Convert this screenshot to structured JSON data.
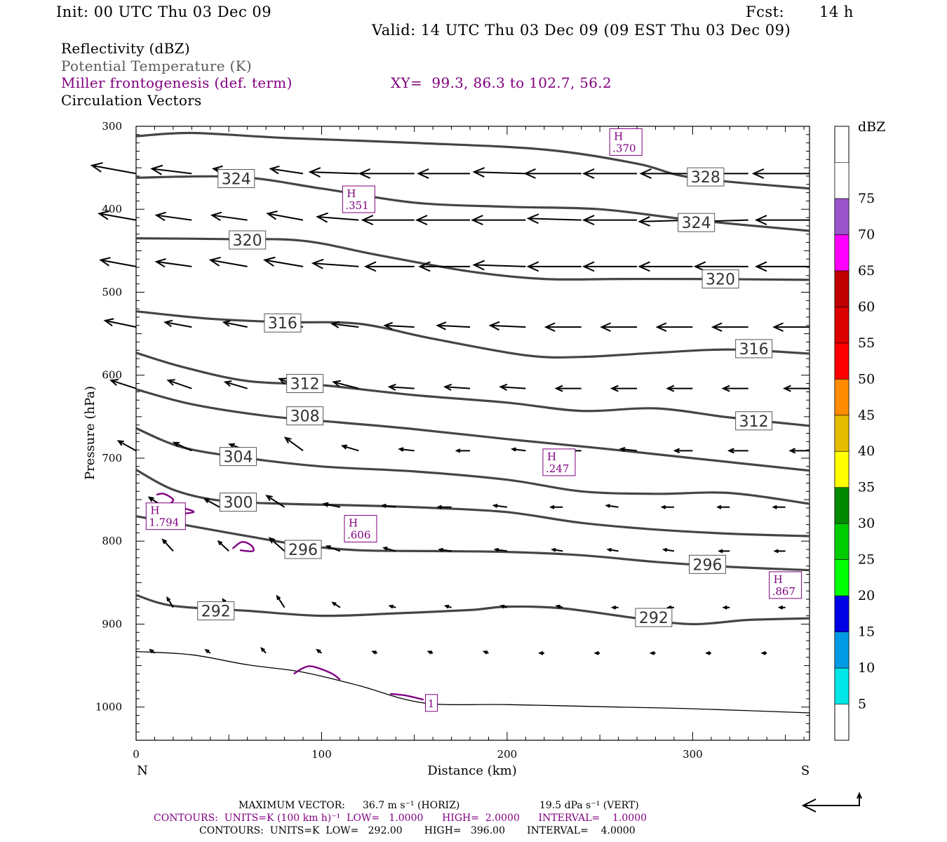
{
  "header": {
    "init": "Init: 00 UTC Thu 03 Dec 09",
    "fcst_label": "Fcst:",
    "fcst_value": "14 h",
    "valid": "Valid: 14 UTC Thu 03 Dec 09 (09 EST Thu 03 Dec 09)"
  },
  "legend": {
    "reflectivity": "Reflectivity (dBZ)",
    "potential_temperature": "Potential Temperature (K)",
    "miller": "Miller frontogenesis (def. term)",
    "xy": "XY=  99.3, 86.3 to 102.7, 56.2",
    "circulation": "Circulation Vectors"
  },
  "footer": {
    "max_vector_label": "MAXIMUM VECTOR:",
    "max_vector_horiz": "36.7 m s⁻¹ (HORIZ)",
    "max_vector_vert": "19.5 dPa s⁻¹ (VERT)",
    "contours_purple": "CONTOURS:  UNITS=K (100 km h)⁻¹  LOW=   1.0000      HIGH=  2.0000      INTERVAL=    1.0000",
    "contours_black": "CONTOURS:  UNITS=K  LOW=   292.00       HIGH=   396.00       INTERVAL=    4.0000"
  },
  "colors": {
    "theta": "#454545",
    "frontogenesis": "#800080",
    "vector": "#000000"
  },
  "colorbar": {
    "title": "dBZ",
    "labels": [
      "5",
      "10",
      "15",
      "20",
      "25",
      "30",
      "35",
      "40",
      "45",
      "50",
      "55",
      "60",
      "65",
      "70",
      "75"
    ],
    "colors": [
      "#00e5e5",
      "#0099e5",
      "#0000e5",
      "#00ff00",
      "#00cc00",
      "#008800",
      "#ffff00",
      "#e5bb00",
      "#ff8c00",
      "#ff0000",
      "#dd0000",
      "#c00000",
      "#ff00ff",
      "#9b55cc",
      "#ffffff"
    ]
  },
  "chart_data": {
    "type": "line",
    "xlabel": "Distance (km)",
    "ylabel": "Pressure (hPa)",
    "xlim": [
      0,
      363
    ],
    "ylim": [
      1040,
      300
    ],
    "y_scale": "linear (inverted)",
    "x_ticks": [
      "0",
      "100",
      "200",
      "300"
    ],
    "y_ticks": [
      "300",
      "400",
      "500",
      "600",
      "700",
      "800",
      "900",
      "1000"
    ],
    "x_end_labels": {
      "left": "N",
      "right": "S"
    },
    "theta_isentropes": [
      {
        "label": "292",
        "points": [
          [
            0,
            865
          ],
          [
            20,
            878
          ],
          [
            60,
            884
          ],
          [
            100,
            890
          ],
          [
            140,
            887
          ],
          [
            180,
            883
          ],
          [
            200,
            879
          ],
          [
            230,
            881
          ],
          [
            270,
            893
          ],
          [
            300,
            900
          ],
          [
            330,
            895
          ],
          [
            363,
            893
          ]
        ],
        "label_at": [
          [
            43,
            884
          ],
          [
            279,
            892
          ]
        ]
      },
      {
        "label": "296",
        "points": [
          [
            0,
            770
          ],
          [
            30,
            782
          ],
          [
            60,
            794
          ],
          [
            90,
            805
          ],
          [
            120,
            811
          ],
          [
            160,
            812
          ],
          [
            200,
            813
          ],
          [
            240,
            817
          ],
          [
            280,
            825
          ],
          [
            320,
            831
          ],
          [
            363,
            835
          ]
        ],
        "label_at": [
          [
            90,
            810
          ],
          [
            308,
            828
          ]
        ]
      },
      {
        "label": "300",
        "points": [
          [
            0,
            714
          ],
          [
            20,
            738
          ],
          [
            45,
            751
          ],
          [
            80,
            755
          ],
          [
            120,
            757
          ],
          [
            160,
            760
          ],
          [
            200,
            765
          ],
          [
            240,
            778
          ],
          [
            280,
            786
          ],
          [
            320,
            791
          ],
          [
            363,
            794
          ]
        ],
        "label_at": [
          [
            55,
            753
          ]
        ]
      },
      {
        "label": "304",
        "points": [
          [
            0,
            664
          ],
          [
            25,
            687
          ],
          [
            60,
            700
          ],
          [
            100,
            710
          ],
          [
            150,
            716
          ],
          [
            200,
            726
          ],
          [
            240,
            740
          ],
          [
            280,
            743
          ],
          [
            320,
            742
          ],
          [
            363,
            755
          ]
        ],
        "label_at": [
          [
            55,
            698
          ]
        ]
      },
      {
        "label": "308",
        "points": [
          [
            0,
            617
          ],
          [
            30,
            635
          ],
          [
            70,
            649
          ],
          [
            110,
            657
          ],
          [
            150,
            665
          ],
          [
            200,
            677
          ],
          [
            250,
            688
          ],
          [
            300,
            700
          ],
          [
            363,
            715
          ]
        ],
        "label_at": [
          [
            91,
            649
          ]
        ]
      },
      {
        "label": "312",
        "points": [
          [
            0,
            573
          ],
          [
            25,
            590
          ],
          [
            60,
            607
          ],
          [
            100,
            612
          ],
          [
            150,
            624
          ],
          [
            200,
            633
          ],
          [
            240,
            643
          ],
          [
            280,
            640
          ],
          [
            320,
            651
          ],
          [
            363,
            661
          ]
        ],
        "label_at": [
          [
            91,
            610
          ],
          [
            333,
            655
          ]
        ]
      },
      {
        "label": "316",
        "points": [
          [
            0,
            523
          ],
          [
            40,
            532
          ],
          [
            80,
            536
          ],
          [
            120,
            538
          ],
          [
            160,
            556
          ],
          [
            210,
            576
          ],
          [
            240,
            578
          ],
          [
            280,
            573
          ],
          [
            320,
            569
          ],
          [
            363,
            574
          ]
        ],
        "label_at": [
          [
            79,
            537
          ],
          [
            333,
            568
          ]
        ]
      },
      {
        "label": "320",
        "points": [
          [
            0,
            435
          ],
          [
            50,
            436
          ],
          [
            90,
            438
          ],
          [
            130,
            455
          ],
          [
            180,
            475
          ],
          [
            220,
            484
          ],
          [
            260,
            484
          ],
          [
            300,
            484
          ],
          [
            363,
            485
          ]
        ],
        "label_at": [
          [
            60,
            437
          ],
          [
            315,
            484
          ]
        ]
      },
      {
        "label": "324",
        "points": [
          [
            0,
            362
          ],
          [
            55,
            361
          ],
          [
            100,
            375
          ],
          [
            150,
            392
          ],
          [
            200,
            397
          ],
          [
            250,
            400
          ],
          [
            300,
            413
          ],
          [
            363,
            426
          ]
        ],
        "label_at": [
          [
            54,
            363
          ],
          [
            302,
            416
          ]
        ]
      },
      {
        "label": "328",
        "points": [
          [
            0,
            312
          ],
          [
            30,
            308
          ],
          [
            80,
            314
          ],
          [
            150,
            320
          ],
          [
            220,
            328
          ],
          [
            270,
            345
          ],
          [
            300,
            362
          ],
          [
            363,
            375
          ]
        ],
        "label_at": [
          [
            307,
            361
          ]
        ]
      }
    ],
    "frontogenesis_maxima": [
      {
        "label": "H",
        "value": ".370",
        "x": 264,
        "y": 319
      },
      {
        "label": "H",
        "value": ".351",
        "x": 120,
        "y": 388
      },
      {
        "label": "H",
        "value": ".247",
        "x": 228,
        "y": 705
      },
      {
        "label": "H",
        "value": "1.794",
        "x": 16,
        "y": 770
      },
      {
        "label": "H",
        "value": ".606",
        "x": 121,
        "y": 785
      },
      {
        "label": "H",
        "value": ".867",
        "x": 350,
        "y": 853
      }
    ],
    "frontogenesis_contours": [
      {
        "label": "1",
        "points": [
          [
            85,
            960
          ],
          [
            90,
            953
          ],
          [
            95,
            951
          ],
          [
            105,
            959
          ],
          [
            110,
            967
          ]
        ]
      },
      {
        "label": "1",
        "points": [
          [
            137,
            984
          ],
          [
            145,
            986
          ],
          [
            155,
            991
          ]
        ]
      },
      {
        "label": "1",
        "points": [
          [
            11,
            744
          ],
          [
            15,
            743
          ],
          [
            20,
            750
          ],
          [
            18,
            757
          ],
          [
            25,
            760
          ],
          [
            31,
            765
          ],
          [
            20,
            768
          ]
        ]
      },
      {
        "label": "1",
        "points": [
          [
            52,
            809
          ],
          [
            57,
            801
          ],
          [
            62,
            805
          ],
          [
            63,
            812
          ],
          [
            56,
            811
          ]
        ]
      }
    ],
    "terrain_surface": [
      [
        0,
        933
      ],
      [
        30,
        937
      ],
      [
        60,
        949
      ],
      [
        90,
        958
      ],
      [
        120,
        974
      ],
      [
        155,
        995
      ],
      [
        200,
        997
      ],
      [
        260,
        1000
      ],
      [
        300,
        1002
      ],
      [
        363,
        1007
      ]
    ],
    "terrain_label": "1",
    "terrain_label_at": [
      159,
      995
    ],
    "circulation_vectors": {
      "rows": [
        {
          "y": 357,
          "x": [
            0,
            30,
            60,
            90,
            120,
            150,
            180,
            210,
            240,
            270,
            300,
            330,
            363
          ],
          "u": [
            -30,
            -27,
            -23,
            -22,
            -33,
            -37,
            -35,
            -35,
            -38,
            -36,
            -35,
            -34,
            -38
          ],
          "v": [
            -5,
            -3,
            -3,
            -3,
            -1,
            0,
            0,
            -1,
            0,
            0,
            0,
            0,
            0
          ]
        },
        {
          "y": 413,
          "x": [
            0,
            30,
            60,
            90,
            120,
            150,
            180,
            210,
            240,
            270,
            300,
            330,
            363
          ],
          "u": [
            -25,
            -24,
            -24,
            -24,
            -28,
            -35,
            -36,
            -36,
            -36,
            -36,
            -36,
            -36,
            -36
          ],
          "v": [
            -4,
            -3,
            -3,
            -4,
            -2,
            0,
            0,
            0,
            -1,
            0,
            1,
            1,
            0
          ]
        },
        {
          "y": 469,
          "x": [
            0,
            30,
            60,
            90,
            120,
            150,
            180,
            210,
            240,
            270,
            300,
            330,
            363
          ],
          "u": [
            -24,
            -24,
            -25,
            -26,
            -31,
            -33,
            -34,
            -35,
            -36,
            -36,
            -36,
            -36,
            -36
          ],
          "v": [
            -4,
            -3,
            -4,
            -4,
            -2,
            0,
            0,
            -1,
            0,
            0,
            0,
            0,
            0
          ]
        },
        {
          "y": 542,
          "x": [
            0,
            30,
            60,
            90,
            120,
            150,
            180,
            210,
            240,
            270,
            300,
            330,
            363
          ],
          "u": [
            -21,
            -18,
            -16,
            -17,
            -18,
            -20,
            -22,
            -24,
            -24,
            -24,
            -24,
            -24,
            -24
          ],
          "v": [
            -4,
            -3,
            -3,
            -5,
            -2,
            -1,
            -1,
            -1,
            0,
            0,
            0,
            0,
            0
          ]
        },
        {
          "y": 616,
          "x": [
            0,
            30,
            60,
            90,
            120,
            150,
            180,
            210,
            240,
            270,
            300,
            330,
            363
          ],
          "u": [
            -17,
            -16,
            -15,
            -16,
            -17,
            -17,
            -17,
            -17,
            -17,
            -17,
            -17,
            -17,
            -17
          ],
          "v": [
            -5,
            -5,
            -4,
            -6,
            -4,
            -1,
            -1,
            -1,
            0,
            0,
            0,
            0,
            0
          ]
        },
        {
          "y": 691,
          "x": [
            0,
            30,
            60,
            90,
            120,
            150,
            180,
            210,
            240,
            270,
            300,
            330,
            363
          ],
          "u": [
            -12,
            -12,
            -12,
            -12,
            -11,
            -10,
            -9,
            -9,
            -10,
            -11,
            -12,
            -13,
            -13
          ],
          "v": [
            -6,
            -5,
            -4,
            -8,
            -3,
            -1,
            0,
            -1,
            0,
            -1,
            0,
            0,
            0
          ]
        },
        {
          "y": 759,
          "x": [
            15,
            45,
            80,
            110,
            140,
            170,
            200,
            230,
            260,
            290,
            320,
            350
          ],
          "u": [
            -10,
            -10,
            -12,
            -11,
            -9,
            -9,
            -9,
            -8,
            -8,
            -8,
            -8,
            -8
          ],
          "v": [
            -6,
            -5,
            -7,
            -2,
            -1,
            0,
            -1,
            0,
            -1,
            0,
            0,
            0
          ]
        },
        {
          "y": 812,
          "x": [
            20,
            50,
            80,
            110,
            140,
            170,
            200,
            230,
            260,
            290,
            320,
            350
          ],
          "u": [
            -7,
            -7,
            -10,
            -9,
            -8,
            -8,
            -8,
            -7,
            -7,
            -7,
            -7,
            -7
          ],
          "v": [
            -7,
            -6,
            -8,
            -3,
            -2,
            -1,
            -1,
            -1,
            -1,
            -1,
            0,
            0
          ]
        },
        {
          "y": 880,
          "x": [
            20,
            50,
            80,
            110,
            140,
            170,
            200,
            230,
            260,
            290,
            320,
            350
          ],
          "u": [
            -4,
            -4,
            -5,
            -5,
            -4,
            -4,
            -4,
            -4,
            -4,
            -4,
            -4,
            -4
          ],
          "v": [
            -6,
            -5,
            -7,
            -3,
            -1,
            -1,
            -1,
            -1,
            0,
            0,
            0,
            0
          ]
        },
        {
          "y": 935,
          "x": [
            10,
            40,
            70,
            100,
            130,
            160,
            190,
            220,
            250,
            280,
            310,
            340
          ],
          "u": [
            -3,
            -3,
            -3,
            -3,
            -3,
            -3,
            -3,
            -3,
            -3,
            -3,
            -3,
            -3
          ],
          "v": [
            -2,
            -2,
            -3,
            -2,
            -1,
            -1,
            -1,
            0,
            0,
            0,
            0,
            0
          ]
        }
      ]
    }
  }
}
